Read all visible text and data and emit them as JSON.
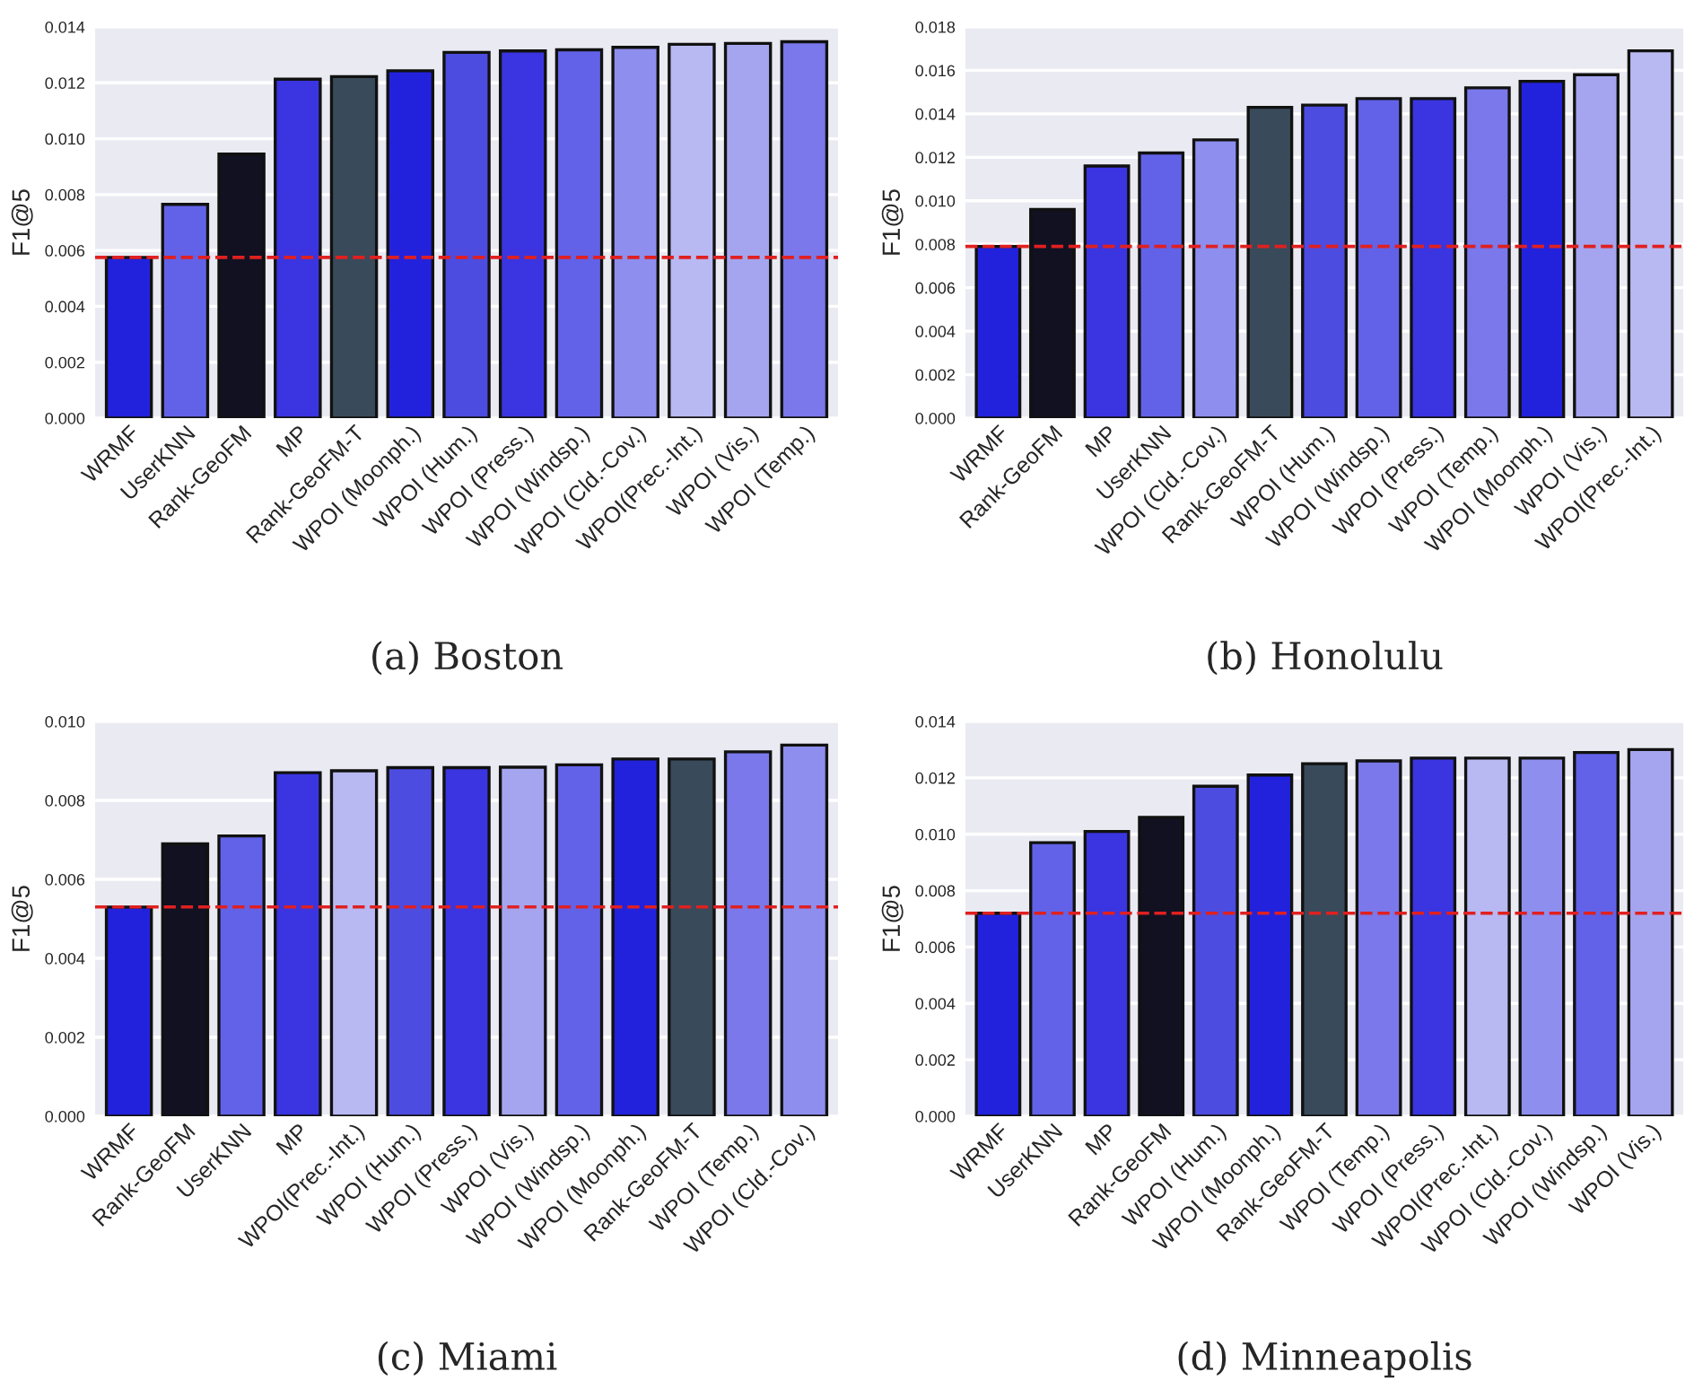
{
  "chart_data": [
    {
      "type": "bar",
      "title": "(a) Boston",
      "ylabel": "F1@5",
      "grid": "y",
      "categories": [
        "WRMF",
        "UserKNN",
        "Rank-GeoFM",
        "MP",
        "Rank-GeoFM-T",
        "WPOI (Moonph.)",
        "WPOI (Hum.)",
        "WPOI (Press.)",
        "WPOI (Windsp.)",
        "WPOI (Cld.-Cov.)",
        "WPOI(Prec.-Int.)",
        "WPOI (Vis.)",
        "WPOI (Temp.)"
      ],
      "values": [
        0.00575,
        0.00765,
        0.00945,
        0.01213,
        0.01222,
        0.01243,
        0.01309,
        0.01314,
        0.01318,
        0.01327,
        0.01338,
        0.01341,
        0.01347
      ],
      "colors": [
        "#2222dd",
        "#6262e8",
        "#111122",
        "#3a35e0",
        "#394a5a",
        "#2222dd",
        "#4c4ce0",
        "#3a35e0",
        "#6262e8",
        "#8e8eee",
        "#b8b8f2",
        "#a5a5ef",
        "#7a78ea"
      ],
      "ylim": [
        0,
        0.014
      ],
      "yticks": [
        {
          "value": 0,
          "label": "0.000"
        },
        {
          "value": 0.002,
          "label": "0.002"
        },
        {
          "value": 0.004,
          "label": "0.004"
        },
        {
          "value": 0.006,
          "label": "0.006"
        },
        {
          "value": 0.008,
          "label": "0.008"
        },
        {
          "value": 0.01,
          "label": "0.010"
        },
        {
          "value": 0.012,
          "label": "0.012"
        },
        {
          "value": 0.014,
          "label": "0.014"
        }
      ],
      "ref_lines": [
        {
          "axis": "y",
          "value": 0.00575,
          "color": "#e02020",
          "line_style": "dashed"
        }
      ]
    },
    {
      "type": "bar",
      "title": "(b) Honolulu",
      "ylabel": "F1@5",
      "grid": "y",
      "categories": [
        "WRMF",
        "Rank-GeoFM",
        "MP",
        "UserKNN",
        "WPOI (Cld.-Cov.)",
        "Rank-GeoFM-T",
        "WPOI (Hum.)",
        "WPOI (Windsp.)",
        "WPOI (Press.)",
        "WPOI (Temp.)",
        "WPOI (Moonph.)",
        "WPOI (Vis.)",
        "WPOI(Prec.-Int.)"
      ],
      "values": [
        0.0079,
        0.0096,
        0.0116,
        0.0122,
        0.0128,
        0.0143,
        0.0144,
        0.0147,
        0.0147,
        0.0152,
        0.0155,
        0.0158,
        0.0169
      ],
      "colors": [
        "#2222dd",
        "#111122",
        "#3a35e0",
        "#6262e8",
        "#8e8eee",
        "#394a5a",
        "#4c4ce0",
        "#6262e8",
        "#3a35e0",
        "#7a78ea",
        "#2222dd",
        "#a5a5ef",
        "#b8b8f2"
      ],
      "ylim": [
        0,
        0.018
      ],
      "yticks": [
        {
          "value": 0,
          "label": "0.000"
        },
        {
          "value": 0.002,
          "label": "0.002"
        },
        {
          "value": 0.004,
          "label": "0.004"
        },
        {
          "value": 0.006,
          "label": "0.006"
        },
        {
          "value": 0.008,
          "label": "0.008"
        },
        {
          "value": 0.01,
          "label": "0.010"
        },
        {
          "value": 0.012,
          "label": "0.012"
        },
        {
          "value": 0.014,
          "label": "0.014"
        },
        {
          "value": 0.016,
          "label": "0.016"
        },
        {
          "value": 0.018,
          "label": "0.018"
        }
      ],
      "ref_lines": [
        {
          "axis": "y",
          "value": 0.0079,
          "color": "#e02020",
          "line_style": "dashed"
        }
      ]
    },
    {
      "type": "bar",
      "title": "(c) Miami",
      "ylabel": "F1@5",
      "grid": "y",
      "categories": [
        "WRMF",
        "Rank-GeoFM",
        "UserKNN",
        "MP",
        "WPOI(Prec.-Int.)",
        "WPOI (Hum.)",
        "WPOI (Press.)",
        "WPOI (Vis.)",
        "WPOI (Windsp.)",
        "WPOI (Moonph.)",
        "Rank-GeoFM-T",
        "WPOI (Temp.)",
        "WPOI (Cld.-Cov.)"
      ],
      "values": [
        0.0053,
        0.0069,
        0.0071,
        0.0087,
        0.00875,
        0.00883,
        0.00883,
        0.00884,
        0.0089,
        0.00905,
        0.00905,
        0.00923,
        0.0094
      ],
      "colors": [
        "#2222dd",
        "#111122",
        "#6262e8",
        "#3a35e0",
        "#b8b8f2",
        "#4c4ce0",
        "#3a35e0",
        "#a5a5ef",
        "#6262e8",
        "#2222dd",
        "#394a5a",
        "#7a78ea",
        "#8e8eee"
      ],
      "ylim": [
        0,
        0.01
      ],
      "yticks": [
        {
          "value": 0,
          "label": "0.000"
        },
        {
          "value": 0.002,
          "label": "0.002"
        },
        {
          "value": 0.004,
          "label": "0.004"
        },
        {
          "value": 0.006,
          "label": "0.006"
        },
        {
          "value": 0.008,
          "label": "0.008"
        },
        {
          "value": 0.01,
          "label": "0.010"
        }
      ],
      "ref_lines": [
        {
          "axis": "y",
          "value": 0.0053,
          "color": "#e02020",
          "line_style": "dashed"
        }
      ]
    },
    {
      "type": "bar",
      "title": "(d) Minneapolis",
      "ylabel": "F1@5",
      "grid": "y",
      "categories": [
        "WRMF",
        "UserKNN",
        "MP",
        "Rank-GeoFM",
        "WPOI (Hum.)",
        "WPOI (Moonph.)",
        "Rank-GeoFM-T",
        "WPOI (Temp.)",
        "WPOI (Press.)",
        "WPOI(Prec.-Int.)",
        "WPOI (Cld.-Cov.)",
        "WPOI (Windsp.)",
        "WPOI (Vis.)"
      ],
      "values": [
        0.0072,
        0.0097,
        0.0101,
        0.0106,
        0.0117,
        0.0121,
        0.0125,
        0.0126,
        0.0127,
        0.0127,
        0.0127,
        0.0129,
        0.013
      ],
      "colors": [
        "#2222dd",
        "#6262e8",
        "#3a35e0",
        "#111122",
        "#4c4ce0",
        "#2222dd",
        "#394a5a",
        "#7a78ea",
        "#3a35e0",
        "#b8b8f2",
        "#8e8eee",
        "#6262e8",
        "#a5a5ef"
      ],
      "ylim": [
        0,
        0.014
      ],
      "yticks": [
        {
          "value": 0,
          "label": "0.000"
        },
        {
          "value": 0.002,
          "label": "0.002"
        },
        {
          "value": 0.004,
          "label": "0.004"
        },
        {
          "value": 0.006,
          "label": "0.006"
        },
        {
          "value": 0.008,
          "label": "0.008"
        },
        {
          "value": 0.01,
          "label": "0.010"
        },
        {
          "value": 0.012,
          "label": "0.012"
        },
        {
          "value": 0.014,
          "label": "0.014"
        }
      ],
      "ref_lines": [
        {
          "axis": "y",
          "value": 0.0072,
          "color": "#e02020",
          "line_style": "dashed"
        }
      ]
    }
  ]
}
